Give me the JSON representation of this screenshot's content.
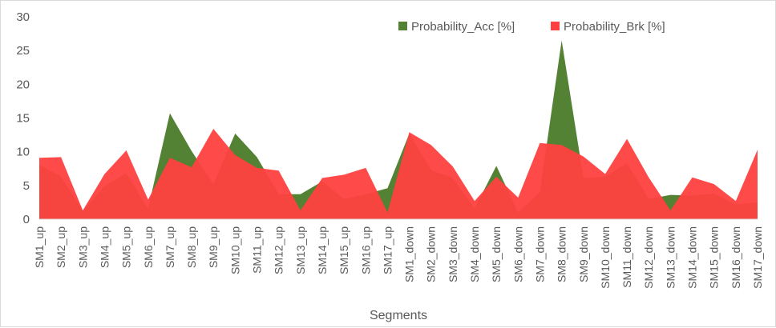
{
  "chart_data": {
    "type": "area",
    "title": "",
    "xlabel": "Segments",
    "ylabel": "",
    "ylim": [
      0,
      30
    ],
    "yticks": [
      0,
      5,
      10,
      15,
      20,
      25,
      30
    ],
    "grid": false,
    "legend_position": "top-right",
    "categories": [
      "SM1_up",
      "SM2_up",
      "SM3_up",
      "SM4_up",
      "SM5_up",
      "SM6_up",
      "SM7_up",
      "SM8_up",
      "SM9_up",
      "SM10_up",
      "SM11_up",
      "SM12_up",
      "SM13_up",
      "SM14_up",
      "SM15_up",
      "SM16_up",
      "SM17_up",
      "SM1_down",
      "SM2_down",
      "SM3_down",
      "SM4_down",
      "SM5_down",
      "SM6_down",
      "SM7_down",
      "SM8_down",
      "SM9_down",
      "SM10_down",
      "SM11_down",
      "SM12_down",
      "SM13_down",
      "SM14_down",
      "SM15_down",
      "SM16_down",
      "SM17_down"
    ],
    "series": [
      {
        "name": "Probability_Acc [%]",
        "color": "#548235",
        "values": [
          8.1,
          6.3,
          1.2,
          4.9,
          6.8,
          1.6,
          15.7,
          10.1,
          5.2,
          12.7,
          9.2,
          3.7,
          3.7,
          5.6,
          3.0,
          3.7,
          4.6,
          12.7,
          7.3,
          6.1,
          1.6,
          7.9,
          1.0,
          4.0,
          26.5,
          6.1,
          6.3,
          8.3,
          3.0,
          3.6,
          3.5,
          3.8,
          2.2,
          2.5
        ]
      },
      {
        "name": "Probability_Brk [%]",
        "color": "#ff4040",
        "values": [
          9.1,
          9.2,
          1.3,
          6.7,
          10.2,
          2.9,
          9.1,
          7.7,
          13.4,
          9.5,
          7.6,
          7.2,
          1.3,
          6.1,
          6.6,
          7.6,
          1.0,
          12.9,
          11.0,
          7.8,
          2.7,
          6.3,
          3.2,
          11.3,
          11.0,
          9.3,
          6.7,
          11.9,
          6.2,
          1.3,
          6.2,
          5.2,
          2.7,
          10.3
        ]
      }
    ]
  }
}
